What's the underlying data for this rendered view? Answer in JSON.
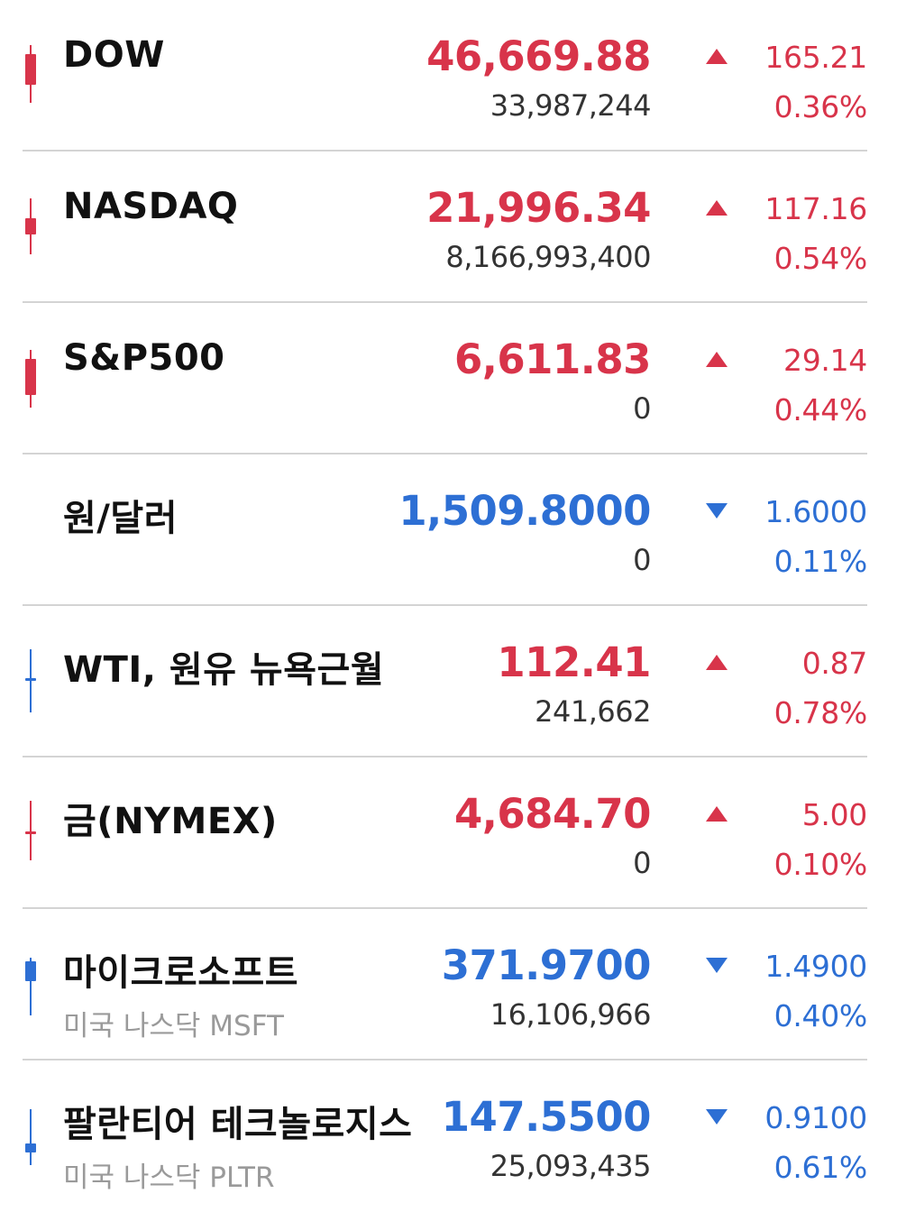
{
  "colors": {
    "up": "#d8344a",
    "down": "#2d6fd4",
    "divider": "#d4d4d4",
    "name": "#111111",
    "subname": "#9a9a9a",
    "volume": "#333333"
  },
  "rows": [
    {
      "name": "DOW",
      "price": "46,669.88",
      "volume": "33,987,244",
      "direction": "up",
      "direction_icon": "triangle-up-icon",
      "change": "165.21",
      "change_pct": "0.36%",
      "candle_color": "up"
    },
    {
      "name": "NASDAQ",
      "price": "21,996.34",
      "volume": "8,166,993,400",
      "direction": "up",
      "direction_icon": "triangle-up-icon",
      "change": "117.16",
      "change_pct": "0.54%",
      "candle_color": "up"
    },
    {
      "name": "S&P500",
      "price": "6,611.83",
      "volume": "0",
      "direction": "up",
      "direction_icon": "triangle-up-icon",
      "change": "29.14",
      "change_pct": "0.44%",
      "candle_color": "up"
    },
    {
      "name": "원/달러",
      "price": "1,509.8000",
      "volume": "0",
      "direction": "down",
      "direction_icon": "triangle-down-icon",
      "change": "1.6000",
      "change_pct": "0.11%",
      "candle_color": null
    },
    {
      "name": "WTI, 원유 뉴욕근월",
      "price": "112.41",
      "volume": "241,662",
      "direction": "up",
      "direction_icon": "triangle-up-icon",
      "change": "0.87",
      "change_pct": "0.78%",
      "candle_color": "down"
    },
    {
      "name": "금(NYMEX)",
      "price": "4,684.70",
      "volume": "0",
      "direction": "up",
      "direction_icon": "triangle-up-icon",
      "change": "5.00",
      "change_pct": "0.10%",
      "candle_color": "up"
    },
    {
      "name": "마이크로소프트",
      "subname": "미국 나스닥 MSFT",
      "price": "371.9700",
      "volume": "16,106,966",
      "direction": "down",
      "direction_icon": "triangle-down-icon",
      "change": "1.4900",
      "change_pct": "0.40%",
      "candle_color": "down"
    },
    {
      "name": "팔란티어 테크놀로지스",
      "subname": "미국 나스닥 PLTR",
      "price": "147.5500",
      "volume": "25,093,435",
      "direction": "down",
      "direction_icon": "triangle-down-icon",
      "change": "0.9100",
      "change_pct": "0.61%",
      "candle_color": "down"
    }
  ]
}
